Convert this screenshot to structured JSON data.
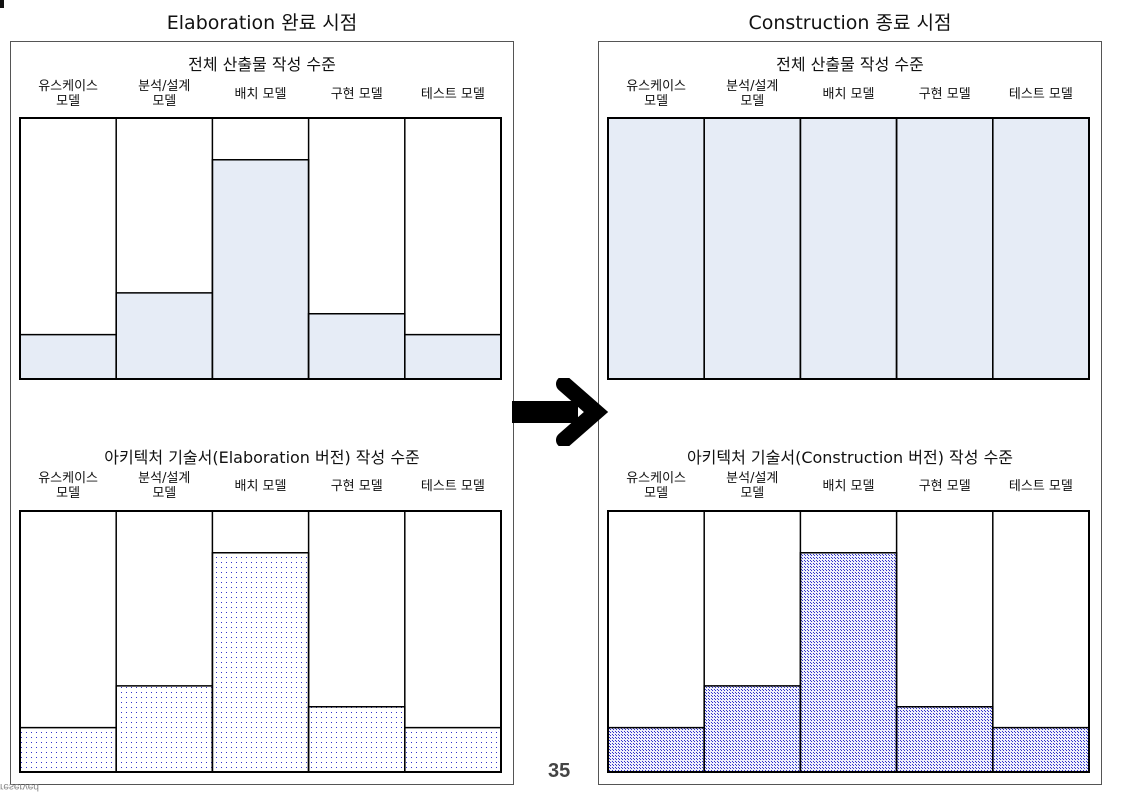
{
  "page_number": "35",
  "footer_text": "reserved",
  "panels": [
    {
      "title": "Elaboration 완료 시점",
      "charts": [
        {
          "title": "전체 산출물 작성 수준",
          "categories": [
            "유스케이스\n모델",
            "분석/설계\n모델",
            "배치 모델",
            "구현 모델",
            "테스트 모델"
          ],
          "values": [
            17,
            33,
            84,
            25,
            17
          ],
          "ylim": [
            0,
            100
          ],
          "fill": "solid",
          "color": "#e6ecf6"
        },
        {
          "title": "아키텍처 기술서(Elaboration 버전) 작성 수준",
          "categories": [
            "유스케이스\n모델",
            "분석/설계\n모델",
            "배치 모델",
            "구현 모델",
            "테스트 모델"
          ],
          "values": [
            17,
            33,
            84,
            25,
            17
          ],
          "ylim": [
            0,
            100
          ],
          "fill": "dots-sparse",
          "color": "#3333cc"
        }
      ]
    },
    {
      "title": "Construction 종료 시점",
      "charts": [
        {
          "title": "전체 산출물 작성 수준",
          "categories": [
            "유스케이스\n모델",
            "분석/설계\n모델",
            "배치 모델",
            "구현 모델",
            "테스트 모델"
          ],
          "values": [
            100,
            100,
            100,
            100,
            100
          ],
          "ylim": [
            0,
            100
          ],
          "fill": "solid",
          "color": "#e6ecf6"
        },
        {
          "title": "아키텍처 기술서(Construction 버전) 작성 수준",
          "categories": [
            "유스케이스\n모델",
            "분석/설계\n모델",
            "배치 모델",
            "구현 모델",
            "테스트 모델"
          ],
          "values": [
            17,
            33,
            84,
            25,
            17
          ],
          "ylim": [
            0,
            100
          ],
          "fill": "dots-dense",
          "color": "#3333cc"
        }
      ]
    }
  ],
  "chart_data": [
    {
      "type": "bar",
      "title": "전체 산출물 작성 수준",
      "panel": "Elaboration 완료 시점",
      "categories": [
        "유스케이스 모델",
        "분석/설계 모델",
        "배치 모델",
        "구현 모델",
        "테스트 모델"
      ],
      "values": [
        17,
        33,
        84,
        25,
        17
      ],
      "ylim": [
        0,
        100
      ],
      "xlabel": "",
      "ylabel": ""
    },
    {
      "type": "bar",
      "title": "아키텍처 기술서(Elaboration 버전) 작성 수준",
      "panel": "Elaboration 완료 시점",
      "categories": [
        "유스케이스 모델",
        "분석/설계 모델",
        "배치 모델",
        "구현 모델",
        "테스트 모델"
      ],
      "values": [
        17,
        33,
        84,
        25,
        17
      ],
      "ylim": [
        0,
        100
      ],
      "xlabel": "",
      "ylabel": ""
    },
    {
      "type": "bar",
      "title": "전체 산출물 작성 수준",
      "panel": "Construction 종료 시점",
      "categories": [
        "유스케이스 모델",
        "분석/설계 모델",
        "배치 모델",
        "구현 모델",
        "테스트 모델"
      ],
      "values": [
        100,
        100,
        100,
        100,
        100
      ],
      "ylim": [
        0,
        100
      ],
      "xlabel": "",
      "ylabel": ""
    },
    {
      "type": "bar",
      "title": "아키텍처 기술서(Construction 버전) 작성 수준",
      "panel": "Construction 종료 시점",
      "categories": [
        "유스케이스 모델",
        "분석/설계 모델",
        "배치 모델",
        "구현 모델",
        "테스트 모델"
      ],
      "values": [
        17,
        33,
        84,
        25,
        17
      ],
      "ylim": [
        0,
        100
      ],
      "xlabel": "",
      "ylabel": ""
    }
  ]
}
